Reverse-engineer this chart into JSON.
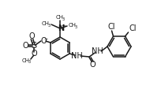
{
  "bg_color": "#ffffff",
  "line_color": "#1a1a1a",
  "bond_lw": 1.1,
  "fs": 6.5,
  "figsize": [
    1.9,
    1.23
  ],
  "dpi": 100,
  "xlim": [
    0,
    190
  ],
  "ylim": [
    0,
    123
  ]
}
